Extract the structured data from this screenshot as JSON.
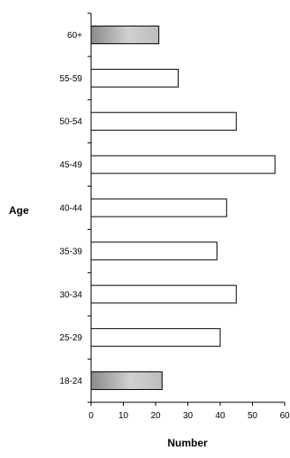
{
  "chart_data": {
    "type": "bar",
    "orientation": "horizontal",
    "categories": [
      "18-24",
      "25-29",
      "30-34",
      "35-39",
      "40-44",
      "45-49",
      "50-54",
      "55-59",
      "60+"
    ],
    "values": [
      22,
      40,
      45,
      39,
      42,
      57,
      45,
      27,
      21
    ],
    "highlighted_categories": [
      "18-24",
      "60+"
    ],
    "xlabel": "Number",
    "ylabel": "Age",
    "xlim": [
      0,
      60
    ],
    "xticks": [
      0,
      10,
      20,
      30,
      40,
      50,
      60
    ],
    "grid": false,
    "legend": "none"
  },
  "colors": {
    "bar_fill": "#ffffff",
    "bar_stroke": "#000000",
    "highlight_gradient_start": "#8a8a8a",
    "highlight_gradient_mid": "#d0d0d0",
    "highlight_gradient_end": "#bdbdbd",
    "axis": "#000000"
  }
}
